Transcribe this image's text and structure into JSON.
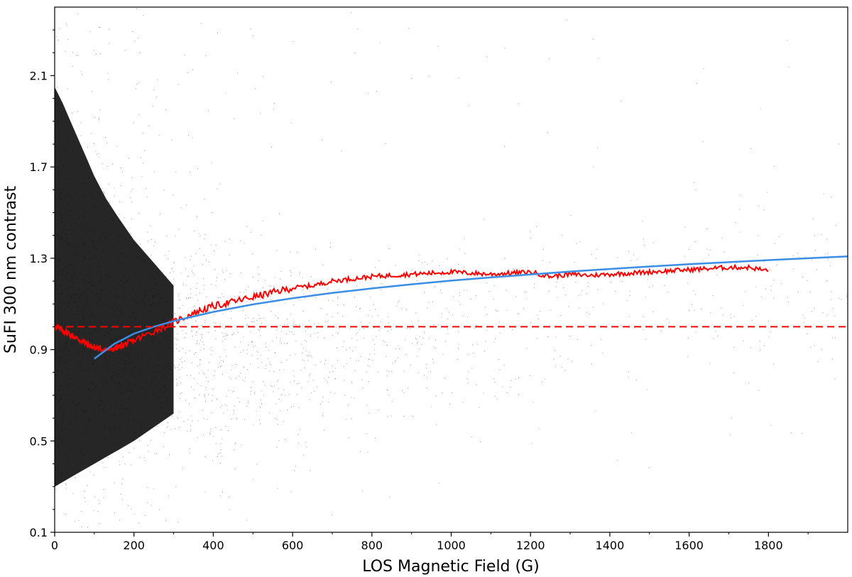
{
  "chart_data": {
    "type": "scatter",
    "title": "",
    "xlabel": "LOS Magnetic Field (G)",
    "ylabel": "SuFI 300 nm contrast",
    "xlim": [
      0,
      2000
    ],
    "ylim": [
      0.1,
      2.4
    ],
    "x_ticks": [
      0,
      200,
      400,
      600,
      800,
      1000,
      1200,
      1400,
      1600,
      1800
    ],
    "y_ticks": [
      0.1,
      0.5,
      0.9,
      1.3,
      1.7,
      2.1
    ],
    "grid": false,
    "legend": "none",
    "colors": {
      "scatter": "#000000",
      "binned_mean": "#ff0000",
      "fit": "#3a8ee6",
      "reference": "#ff0000"
    },
    "scatter_envelope": {
      "dense_core": [
        {
          "x": 0,
          "low": 0.3,
          "high": 2.0
        },
        {
          "x": 100,
          "low": 0.33,
          "high": 1.75
        },
        {
          "x": 200,
          "low": 0.38,
          "high": 1.55
        },
        {
          "x": 400,
          "low": 0.45,
          "high": 1.4
        },
        {
          "x": 700,
          "low": 0.55,
          "high": 1.3
        },
        {
          "x": 1200,
          "low": 0.7,
          "high": 1.4
        },
        {
          "x": 1600,
          "low": 0.8,
          "high": 1.5
        }
      ],
      "sparse_spread": [
        {
          "x": 0,
          "low": 0.1,
          "high": 2.4
        },
        {
          "x": 1000,
          "low": 0.2,
          "high": 2.4
        },
        {
          "x": 2000,
          "low": 0.4,
          "high": 2.3
        }
      ]
    },
    "series": [
      {
        "kind": "line",
        "style": "binned-mean",
        "x": [
          0,
          20,
          40,
          60,
          80,
          100,
          120,
          140,
          160,
          180,
          200,
          250,
          300,
          350,
          400,
          450,
          500,
          550,
          600,
          650,
          700,
          750,
          800,
          850,
          900,
          950,
          1000,
          1050,
          1100,
          1150,
          1200,
          1250,
          1300,
          1350,
          1400,
          1450,
          1500,
          1550,
          1600,
          1650,
          1700,
          1750,
          1800
        ],
        "y": [
          1.0,
          0.985,
          0.965,
          0.945,
          0.925,
          0.91,
          0.9,
          0.9,
          0.91,
          0.925,
          0.94,
          0.98,
          1.02,
          1.06,
          1.09,
          1.11,
          1.13,
          1.15,
          1.17,
          1.18,
          1.2,
          1.21,
          1.22,
          1.225,
          1.23,
          1.235,
          1.24,
          1.235,
          1.23,
          1.235,
          1.24,
          1.22,
          1.23,
          1.225,
          1.23,
          1.235,
          1.24,
          1.245,
          1.25,
          1.255,
          1.26,
          1.26,
          1.245
        ]
      },
      {
        "kind": "line",
        "style": "fit",
        "x": [
          100,
          150,
          200,
          250,
          300,
          400,
          500,
          600,
          700,
          800,
          900,
          1000,
          1100,
          1200,
          1300,
          1400,
          1500,
          1600,
          1700,
          1800,
          1900,
          2000
        ],
        "y": [
          0.86,
          0.925,
          0.97,
          1.0,
          1.025,
          1.065,
          1.098,
          1.125,
          1.148,
          1.168,
          1.186,
          1.202,
          1.216,
          1.229,
          1.242,
          1.253,
          1.264,
          1.274,
          1.283,
          1.292,
          1.3,
          1.308
        ]
      },
      {
        "kind": "hline",
        "style": "dashed",
        "y": 1.0
      }
    ]
  }
}
